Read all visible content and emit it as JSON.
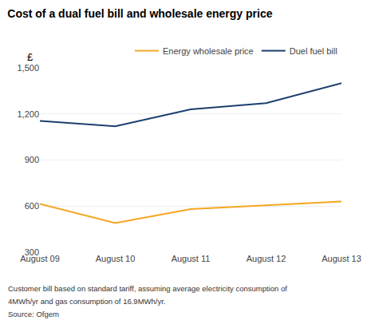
{
  "chart_data": {
    "type": "line",
    "title": "Cost of a dual fuel bill and wholesale energy price",
    "ylabel": "£",
    "categories": [
      "August 09",
      "August 10",
      "August 11",
      "August 12",
      "August 13"
    ],
    "series": [
      {
        "name": "Duel fuel bill",
        "color": "#1c3f6e",
        "values": [
          1155,
          1120,
          1230,
          1270,
          1400
        ]
      },
      {
        "name": "Energy wholesale price",
        "color": "#f5a623",
        "values": [
          615,
          490,
          580,
          605,
          630
        ]
      }
    ],
    "ylim": [
      300,
      1500
    ],
    "yticks": [
      300,
      600,
      900,
      {
        "value": 1200,
        "label": "1,200"
      },
      {
        "value": 1500,
        "label": "1,500"
      }
    ],
    "grid": true,
    "legend": "top",
    "annotations": [
      "Customer bill based on standard tariff, assuming average electricity consumption of",
      "4MWh/yr and gas consumption of 16.9MWh/yr.",
      "Source: Ofgem"
    ]
  }
}
